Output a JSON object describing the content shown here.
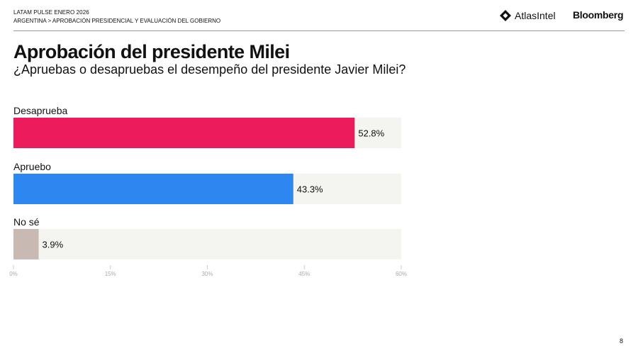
{
  "header": {
    "line1": "LATAM PULSE ENERO 2026",
    "line2": "ARGENTINA > APROBACIÓN PRESIDENCIAL Y EVALUACIÓN DEL GOBIERNO",
    "logo_atlas": "AtlasIntel",
    "logo_bloomberg": "Bloomberg"
  },
  "page_number": "8",
  "chart_data": {
    "type": "bar",
    "orientation": "horizontal",
    "title": "Aprobación del presidente Milei",
    "subtitle": "¿Apruebas o desapruebas el desempeño del presidente Javier Milei?",
    "categories": [
      "Desaprueba",
      "Apruebo",
      "No sé"
    ],
    "values": [
      52.8,
      43.3,
      3.9
    ],
    "value_labels": [
      "52.8%",
      "43.3%",
      "3.9%"
    ],
    "colors": [
      "#EC1C5C",
      "#2E86F0",
      "#C8BAB3"
    ],
    "track_color": "#F4F4F1",
    "xlim": [
      0,
      60
    ],
    "xticks": [
      0,
      15,
      30,
      45,
      60
    ],
    "xtick_labels": [
      "0%",
      "15%",
      "30%",
      "45%",
      "60%"
    ],
    "grid": false
  }
}
